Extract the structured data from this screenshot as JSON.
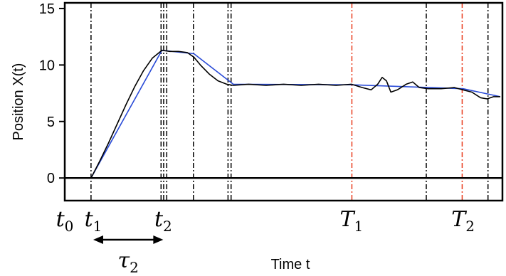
{
  "chart_data": {
    "type": "line",
    "xlabel": "Time t",
    "ylabel": "Position X(t)",
    "xlim": [
      0,
      100
    ],
    "ylim": [
      -2,
      15.5
    ],
    "y_ticks": [
      0,
      5,
      10,
      15
    ],
    "x_tick_labels": [
      {
        "base": "t",
        "sub": "0",
        "x": 0
      },
      {
        "base": "t",
        "sub": "1",
        "x": 6.5
      },
      {
        "base": "t",
        "sub": "2",
        "x": 22.5
      },
      {
        "base": "T",
        "sub": "1",
        "x": 65.5
      },
      {
        "base": "T",
        "sub": "2",
        "x": 91
      }
    ],
    "horizontal_line": 0,
    "vertical_lines": [
      {
        "x": 6.0,
        "style": "dashdot",
        "color": "#000000"
      },
      {
        "x": 22.0,
        "style": "dashdot",
        "color": "#000000"
      },
      {
        "x": 22.6,
        "style": "dashdot",
        "color": "#000000"
      },
      {
        "x": 23.3,
        "style": "dashdot",
        "color": "#000000"
      },
      {
        "x": 29.4,
        "style": "dashdot",
        "color": "#000000"
      },
      {
        "x": 37.3,
        "style": "dashdot",
        "color": "#000000"
      },
      {
        "x": 38.0,
        "style": "dashdot",
        "color": "#000000"
      },
      {
        "x": 65.6,
        "style": "dashdot",
        "color": "#e8391a"
      },
      {
        "x": 82.6,
        "style": "dashdot",
        "color": "#000000"
      },
      {
        "x": 90.8,
        "style": "dashdot",
        "color": "#e8391a"
      },
      {
        "x": 96.7,
        "style": "dashdot",
        "color": "#000000"
      }
    ],
    "series": [
      {
        "color": "#000000",
        "x": [
          6.0,
          8,
          10,
          12,
          14,
          16,
          18,
          20,
          22.2,
          24,
          26,
          28,
          29.5,
          31,
          33,
          35,
          37,
          38.5,
          42,
          46,
          50,
          54,
          58,
          62,
          65.5,
          68,
          70,
          71.5,
          72.5,
          73.5,
          74.5,
          76,
          78,
          79.5,
          81,
          83,
          86,
          89,
          91,
          93,
          95,
          96.5,
          98,
          99.5
        ],
        "values": [
          0.0,
          1.5,
          3.1,
          4.8,
          6.5,
          8.1,
          9.5,
          10.6,
          11.3,
          11.2,
          11.2,
          11.1,
          10.7,
          10.0,
          9.2,
          8.6,
          8.3,
          8.2,
          8.3,
          8.2,
          8.3,
          8.2,
          8.3,
          8.2,
          8.3,
          8.0,
          7.8,
          8.3,
          8.9,
          8.6,
          7.6,
          7.8,
          8.3,
          8.5,
          8.0,
          7.9,
          7.9,
          8.0,
          7.8,
          7.6,
          7.1,
          7.0,
          7.2,
          7.2
        ]
      },
      {
        "color": "#2a4bd7",
        "x": [
          6.0,
          22.2,
          29.5,
          38.5,
          65.5,
          91,
          99.5
        ],
        "values": [
          0.0,
          11.3,
          11.0,
          8.3,
          8.25,
          7.9,
          7.2
        ]
      }
    ],
    "annotations": [
      {
        "type": "double-arrow",
        "x_start": 6.5,
        "x_end": 22.5,
        "label_base": "τ",
        "label_sub": "2"
      }
    ]
  }
}
